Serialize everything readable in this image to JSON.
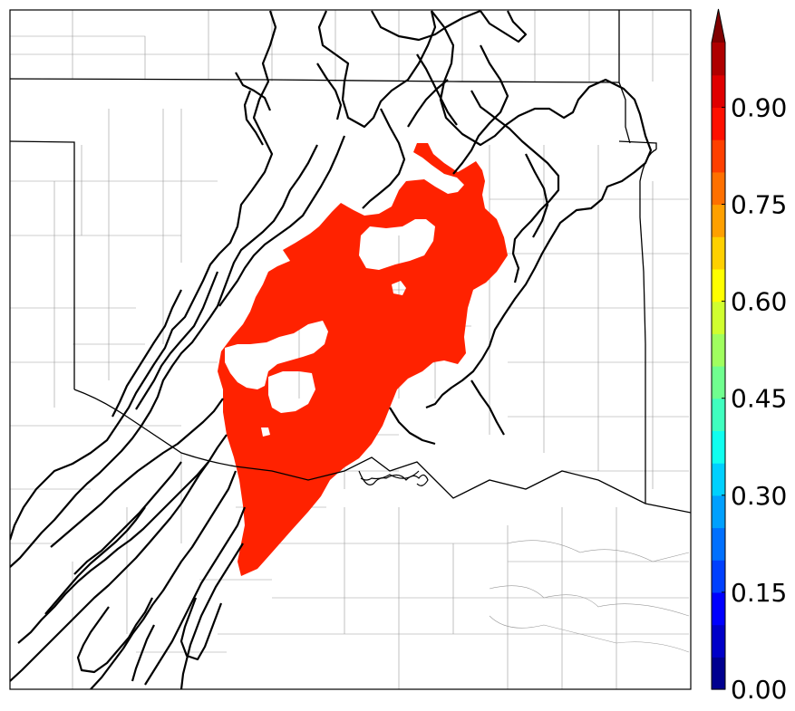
{
  "colorbar": {
    "ticks": [
      "0.00",
      "0.15",
      "0.30",
      "0.45",
      "0.60",
      "0.75",
      "0.90"
    ],
    "tick_values": [
      0.0,
      0.15,
      0.3,
      0.45,
      0.6,
      0.75,
      0.9
    ],
    "range": [
      0.0,
      1.0
    ],
    "extend": "max",
    "levels": [
      0.0,
      0.05,
      0.1,
      0.15,
      0.2,
      0.25,
      0.3,
      0.35,
      0.4,
      0.45,
      0.5,
      0.55,
      0.6,
      0.65,
      0.7,
      0.75,
      0.8,
      0.85,
      0.9,
      0.95,
      1.0
    ],
    "colors": [
      "#00008f",
      "#0000c8",
      "#0000ff",
      "#0040ff",
      "#0070ff",
      "#00a0ff",
      "#00d0ff",
      "#10ffef",
      "#40ffbf",
      "#70ff8f",
      "#a0ff5f",
      "#d0ff2f",
      "#ffff00",
      "#ffd000",
      "#ffa000",
      "#ff7000",
      "#ff4000",
      "#ff1000",
      "#df0000",
      "#af0000"
    ],
    "extend_color": "#800000"
  },
  "map": {
    "probability_fill_color": "#ff2200",
    "probability_fill_value": 0.9,
    "contour_color": "#000000",
    "boundary_color": "#000000",
    "county_color": "#9a9a9a"
  }
}
